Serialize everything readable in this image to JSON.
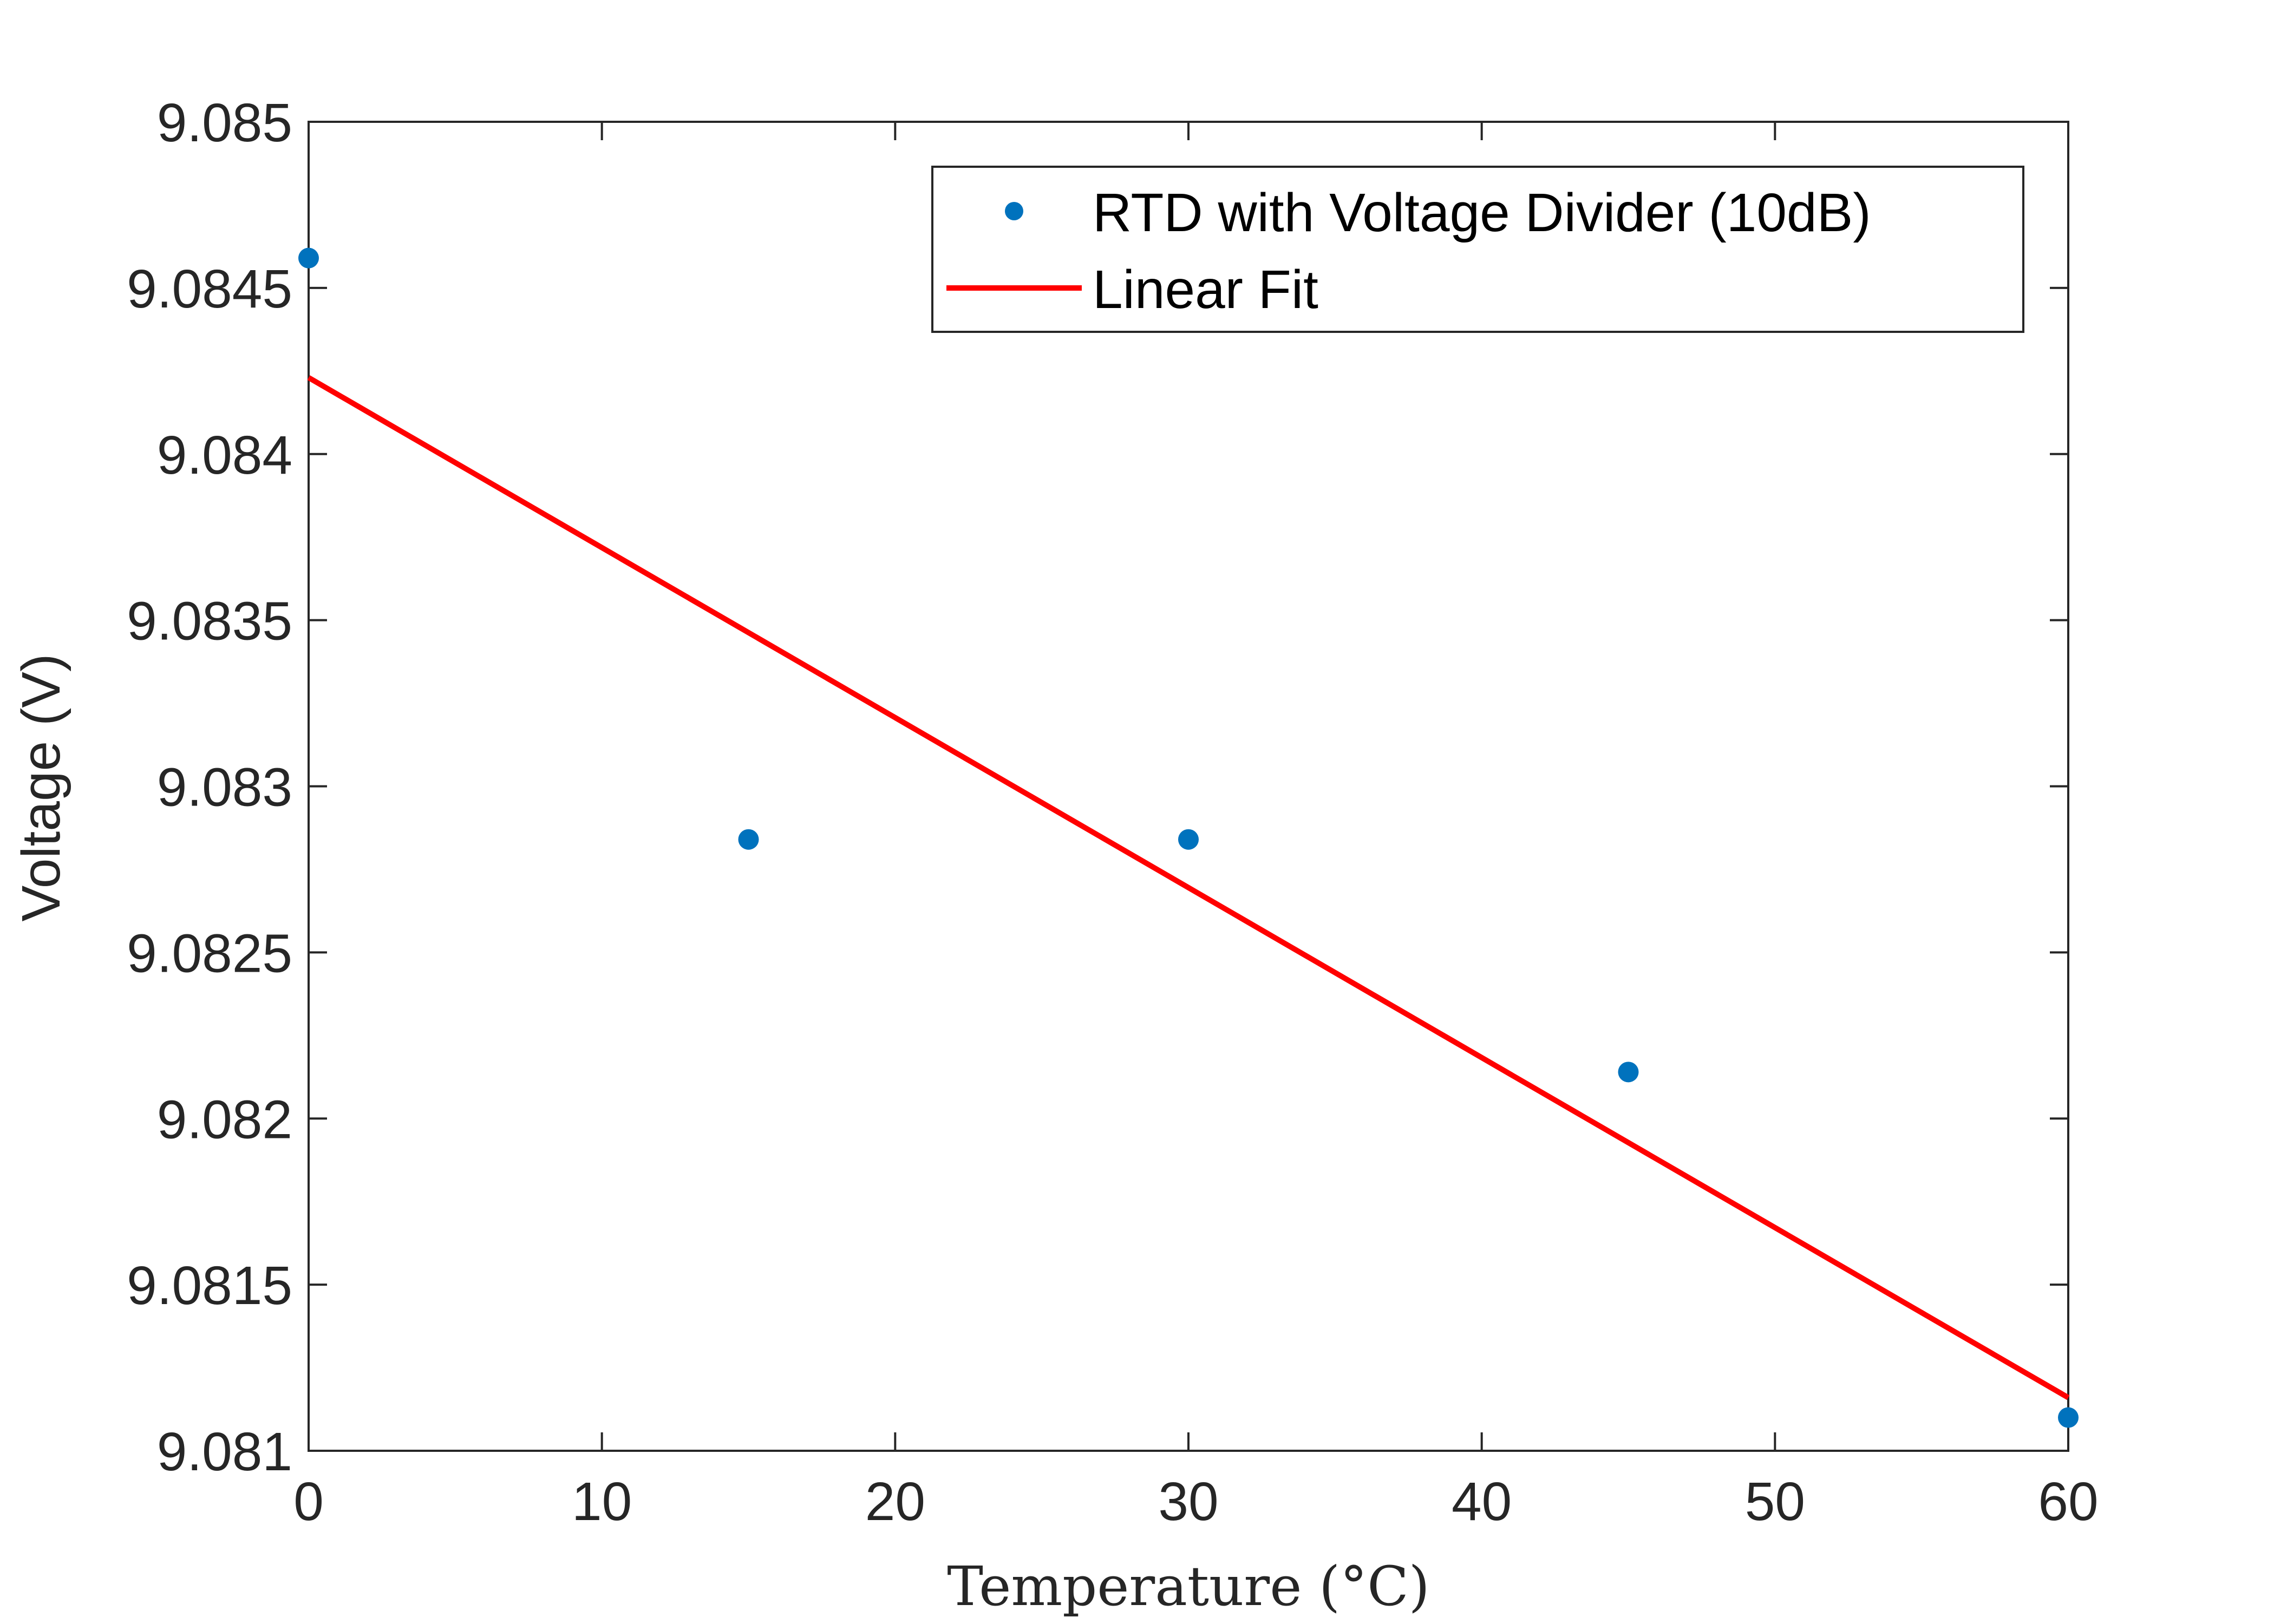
{
  "chart_data": {
    "type": "scatter",
    "xlabel": "Temperature (°C)",
    "ylabel": "Voltage (V)",
    "xlim": [
      0,
      60
    ],
    "ylim": [
      9.081,
      9.085
    ],
    "xticks": [
      0,
      10,
      20,
      30,
      40,
      50,
      60
    ],
    "xtick_labels": [
      "0",
      "10",
      "20",
      "30",
      "40",
      "50",
      "60"
    ],
    "yticks": [
      9.081,
      9.0815,
      9.082,
      9.0825,
      9.083,
      9.0835,
      9.084,
      9.0845,
      9.085
    ],
    "ytick_labels": [
      "9.081",
      "9.0815",
      "9.082",
      "9.0825",
      "9.083",
      "9.0835",
      "9.084",
      "9.0845",
      "9.085"
    ],
    "grid": false,
    "legend_position": "top-right",
    "series": [
      {
        "name": "RTD with Voltage Divider (10dB)",
        "type": "scatter",
        "color": "#0072BD",
        "x": [
          0,
          15,
          30,
          45,
          60
        ],
        "y": [
          9.08459,
          9.08284,
          9.08284,
          9.08214,
          9.0811
        ]
      },
      {
        "name": "Linear Fit",
        "type": "line",
        "color": "#FF0000",
        "x": [
          0,
          60
        ],
        "y": [
          9.08423,
          9.08116
        ]
      }
    ]
  }
}
